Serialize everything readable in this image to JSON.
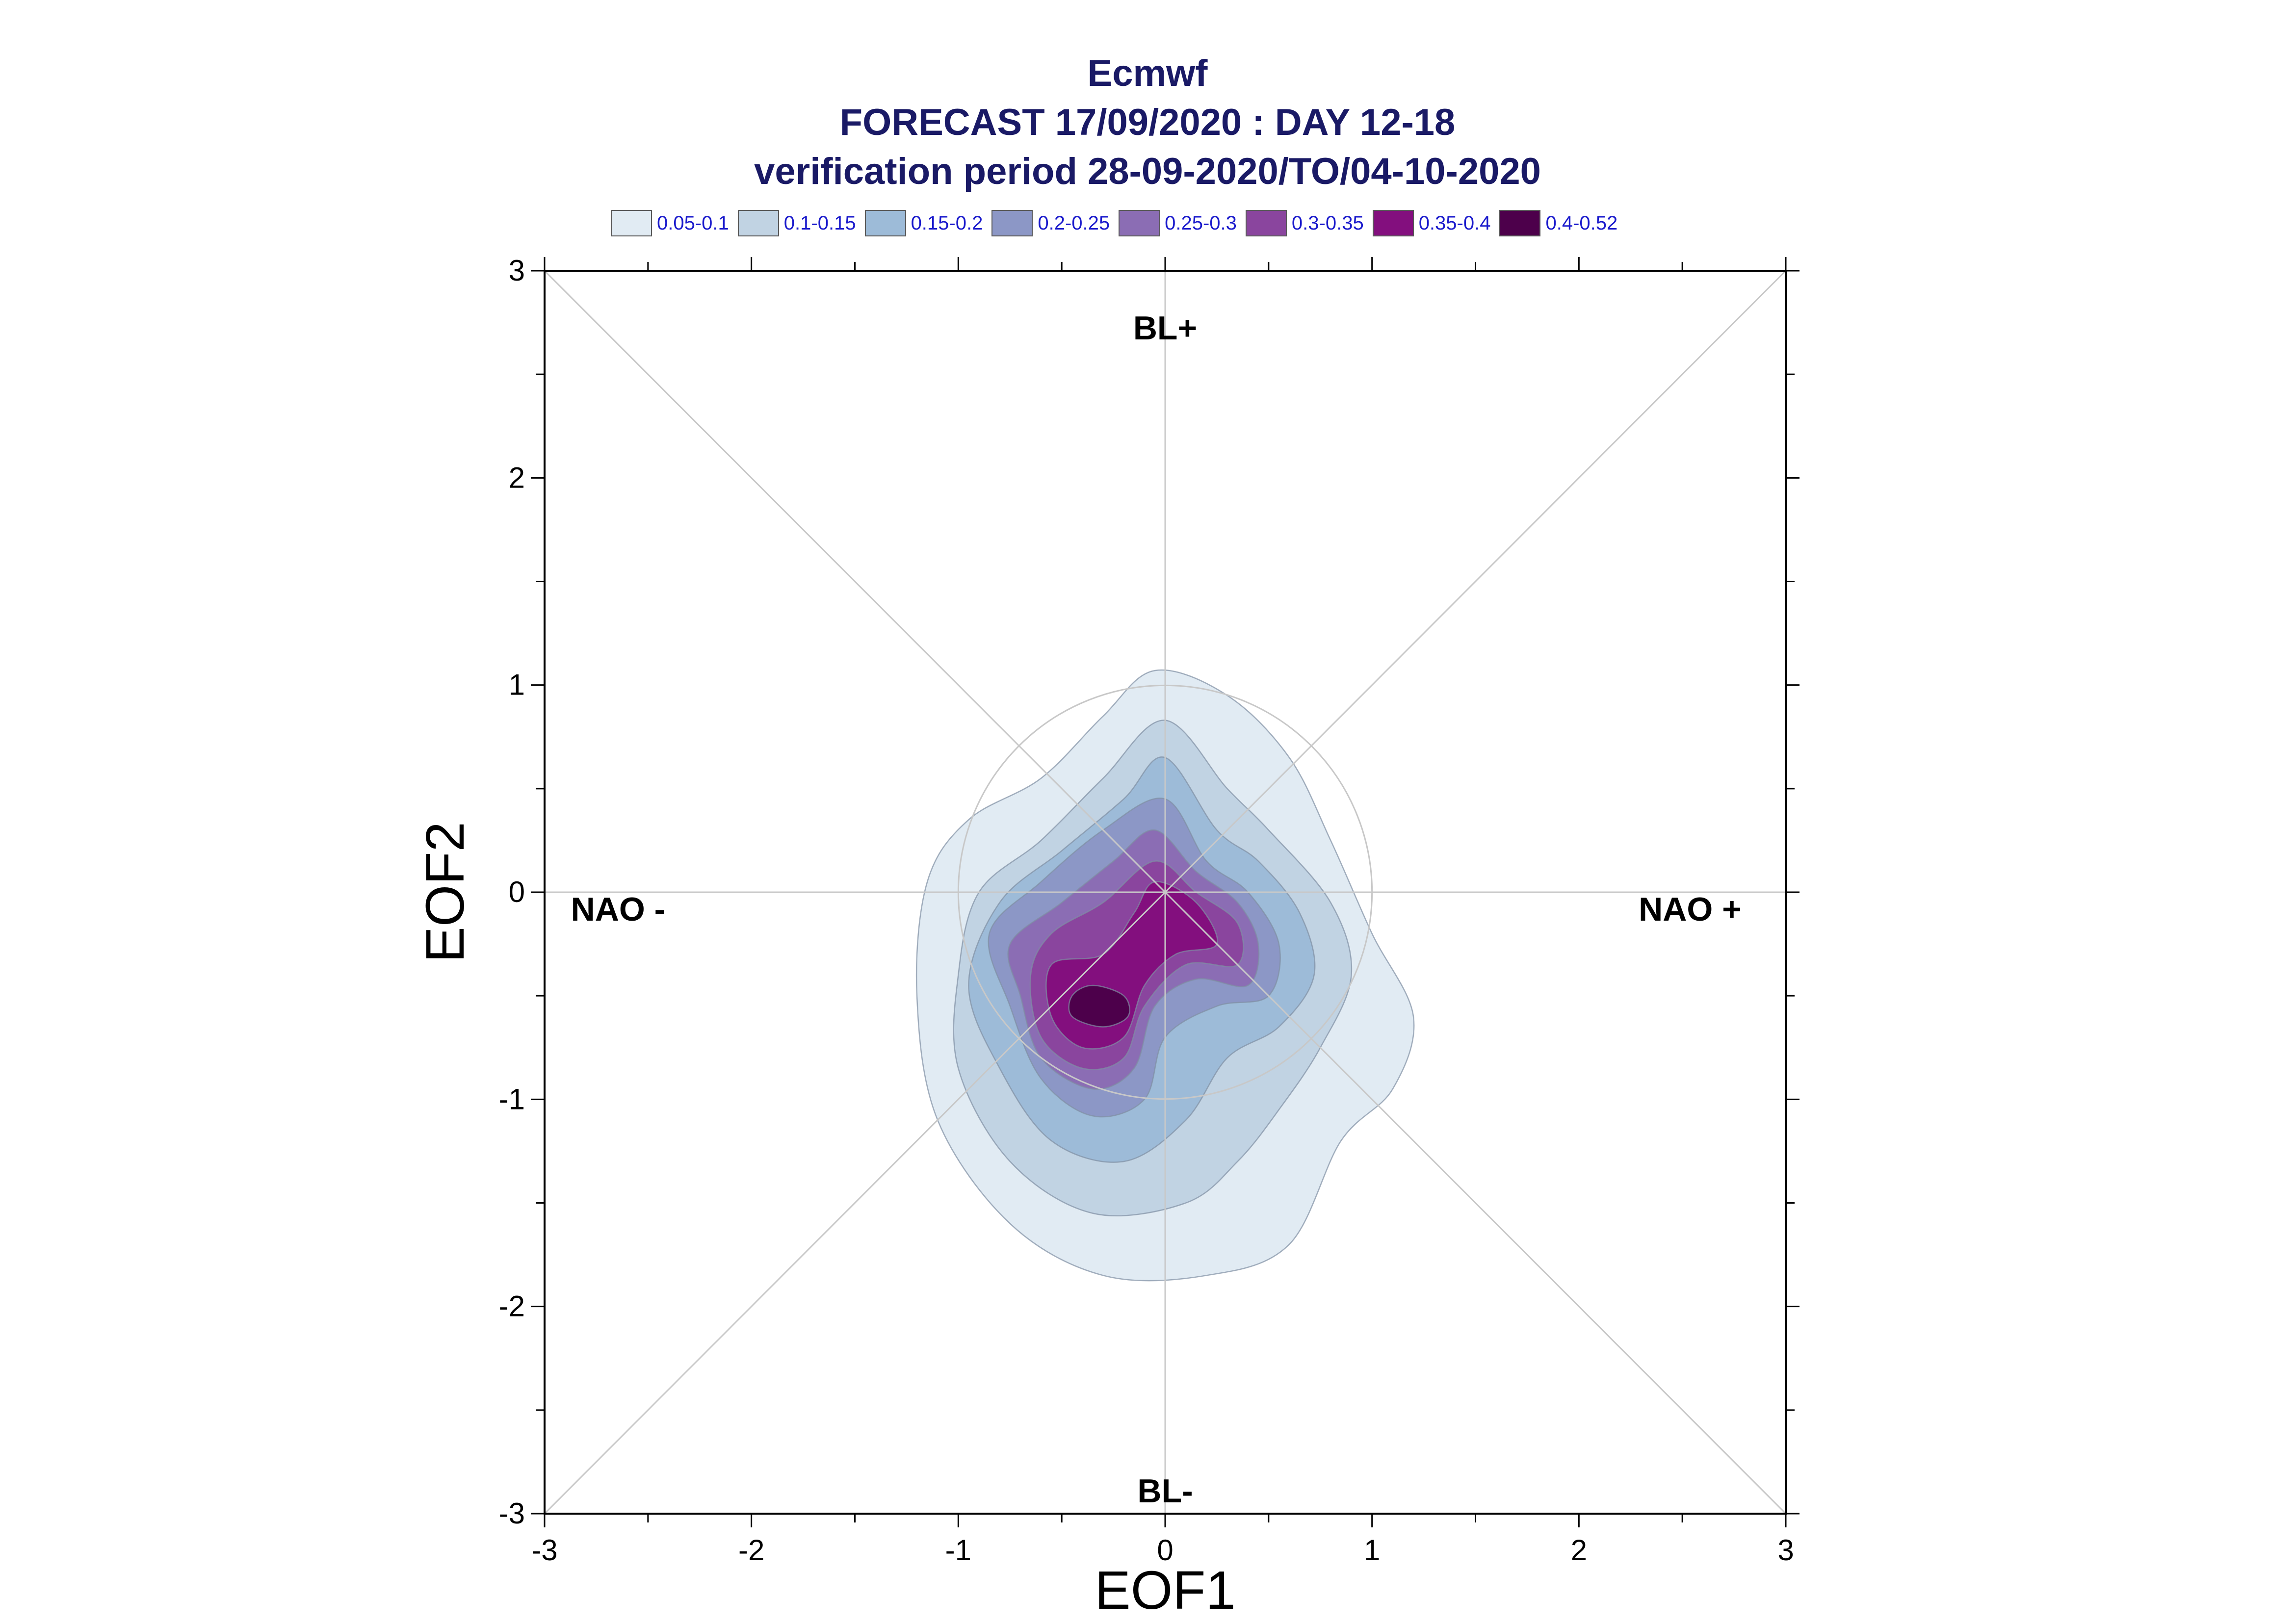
{
  "header": {
    "title": "Ecmwf",
    "subtitle": "FORECAST 17/09/2020 : DAY 12-18",
    "period": "verification period 28-09-2020/TO/04-10-2020"
  },
  "legend": {
    "items": [
      {
        "label": "0.05-0.1",
        "color": "#e1ebf3"
      },
      {
        "label": "0.1-0.15",
        "color": "#c1d3e3"
      },
      {
        "label": "0.15-0.2",
        "color": "#9dbbd8"
      },
      {
        "label": "0.2-0.25",
        "color": "#8c97c6"
      },
      {
        "label": "0.25-0.3",
        "color": "#8b6db4"
      },
      {
        "label": "0.3-0.35",
        "color": "#8a459e"
      },
      {
        "label": "0.35-0.4",
        "color": "#830f7e"
      },
      {
        "label": "0.4-0.52",
        "color": "#4d004b"
      }
    ]
  },
  "chart_data": {
    "type": "contour",
    "xlabel": "EOF1",
    "ylabel": "EOF2",
    "xlim": [
      -3,
      3
    ],
    "ylim": [
      -3,
      3
    ],
    "x_ticks": [
      "-3",
      "-2",
      "-1",
      "0",
      "1",
      "2",
      "3"
    ],
    "y_ticks": [
      "3",
      "2",
      "1",
      "0",
      "-1",
      "-2",
      "-3"
    ],
    "reference_circle_radius": 1,
    "regime_labels": {
      "top": "BL+",
      "bottom": "BL-",
      "left": "NAO -",
      "right": "NAO +"
    },
    "density_levels": [
      {
        "level": "0.05-0.1",
        "outline": [
          [
            -0.05,
            1.07
          ],
          [
            0.3,
            0.95
          ],
          [
            0.6,
            0.65
          ],
          [
            0.8,
            0.25
          ],
          [
            1.0,
            -0.2
          ],
          [
            1.2,
            -0.6
          ],
          [
            1.1,
            -0.95
          ],
          [
            0.85,
            -1.2
          ],
          [
            0.6,
            -1.7
          ],
          [
            0.2,
            -1.85
          ],
          [
            -0.3,
            -1.85
          ],
          [
            -0.75,
            -1.6
          ],
          [
            -1.1,
            -1.1
          ],
          [
            -1.2,
            -0.5
          ],
          [
            -1.15,
            0.05
          ],
          [
            -0.95,
            0.35
          ],
          [
            -0.6,
            0.55
          ],
          [
            -0.3,
            0.85
          ]
        ]
      },
      {
        "level": "0.1-0.15",
        "outline": [
          [
            0.0,
            0.83
          ],
          [
            0.3,
            0.5
          ],
          [
            0.5,
            0.3
          ],
          [
            0.8,
            -0.05
          ],
          [
            0.9,
            -0.4
          ],
          [
            0.75,
            -0.75
          ],
          [
            0.55,
            -1.05
          ],
          [
            0.35,
            -1.3
          ],
          [
            0.1,
            -1.5
          ],
          [
            -0.35,
            -1.55
          ],
          [
            -0.75,
            -1.3
          ],
          [
            -1.0,
            -0.85
          ],
          [
            -1.0,
            -0.4
          ],
          [
            -0.9,
            0.0
          ],
          [
            -0.6,
            0.25
          ],
          [
            -0.3,
            0.55
          ]
        ]
      },
      {
        "level": "0.15-0.2",
        "outline": [
          [
            0.0,
            0.65
          ],
          [
            0.25,
            0.3
          ],
          [
            0.45,
            0.15
          ],
          [
            0.65,
            -0.1
          ],
          [
            0.72,
            -0.4
          ],
          [
            0.55,
            -0.65
          ],
          [
            0.3,
            -0.8
          ],
          [
            0.1,
            -1.1
          ],
          [
            -0.2,
            -1.3
          ],
          [
            -0.55,
            -1.2
          ],
          [
            -0.8,
            -0.85
          ],
          [
            -0.95,
            -0.45
          ],
          [
            -0.8,
            -0.05
          ],
          [
            -0.5,
            0.2
          ],
          [
            -0.2,
            0.45
          ]
        ]
      },
      {
        "level": "0.2-0.25",
        "outline": [
          [
            0.0,
            0.45
          ],
          [
            0.2,
            0.15
          ],
          [
            0.4,
            0.0
          ],
          [
            0.55,
            -0.25
          ],
          [
            0.5,
            -0.5
          ],
          [
            0.25,
            -0.55
          ],
          [
            0.0,
            -0.7
          ],
          [
            -0.1,
            -1.0
          ],
          [
            -0.35,
            -1.08
          ],
          [
            -0.6,
            -0.9
          ],
          [
            -0.75,
            -0.55
          ],
          [
            -0.85,
            -0.2
          ],
          [
            -0.6,
            0.05
          ],
          [
            -0.3,
            0.3
          ]
        ]
      },
      {
        "level": "0.25-0.3",
        "outline": [
          [
            -0.05,
            0.3
          ],
          [
            0.15,
            0.1
          ],
          [
            0.35,
            -0.05
          ],
          [
            0.45,
            -0.25
          ],
          [
            0.4,
            -0.45
          ],
          [
            0.15,
            -0.42
          ],
          [
            -0.05,
            -0.55
          ],
          [
            -0.15,
            -0.85
          ],
          [
            -0.35,
            -0.95
          ],
          [
            -0.6,
            -0.8
          ],
          [
            -0.7,
            -0.5
          ],
          [
            -0.75,
            -0.25
          ],
          [
            -0.5,
            -0.05
          ],
          [
            -0.25,
            0.15
          ]
        ]
      },
      {
        "level": "0.3-0.35",
        "outline": [
          [
            -0.05,
            0.15
          ],
          [
            0.15,
            0.0
          ],
          [
            0.35,
            -0.15
          ],
          [
            0.35,
            -0.35
          ],
          [
            0.1,
            -0.35
          ],
          [
            -0.1,
            -0.55
          ],
          [
            -0.2,
            -0.8
          ],
          [
            -0.4,
            -0.85
          ],
          [
            -0.6,
            -0.7
          ],
          [
            -0.65,
            -0.4
          ],
          [
            -0.55,
            -0.2
          ],
          [
            -0.3,
            -0.05
          ]
        ]
      },
      {
        "level": "0.35-0.4",
        "outline": [
          [
            -0.05,
            0.05
          ],
          [
            0.15,
            -0.05
          ],
          [
            0.25,
            -0.25
          ],
          [
            0.05,
            -0.3
          ],
          [
            -0.1,
            -0.45
          ],
          [
            -0.2,
            -0.7
          ],
          [
            -0.4,
            -0.75
          ],
          [
            -0.55,
            -0.6
          ],
          [
            -0.55,
            -0.35
          ],
          [
            -0.3,
            -0.3
          ],
          [
            -0.15,
            -0.1
          ]
        ]
      },
      {
        "level": "0.4-0.52",
        "outline": [
          [
            -0.35,
            -0.45
          ],
          [
            -0.2,
            -0.5
          ],
          [
            -0.18,
            -0.6
          ],
          [
            -0.3,
            -0.65
          ],
          [
            -0.45,
            -0.6
          ],
          [
            -0.45,
            -0.5
          ]
        ]
      }
    ]
  }
}
